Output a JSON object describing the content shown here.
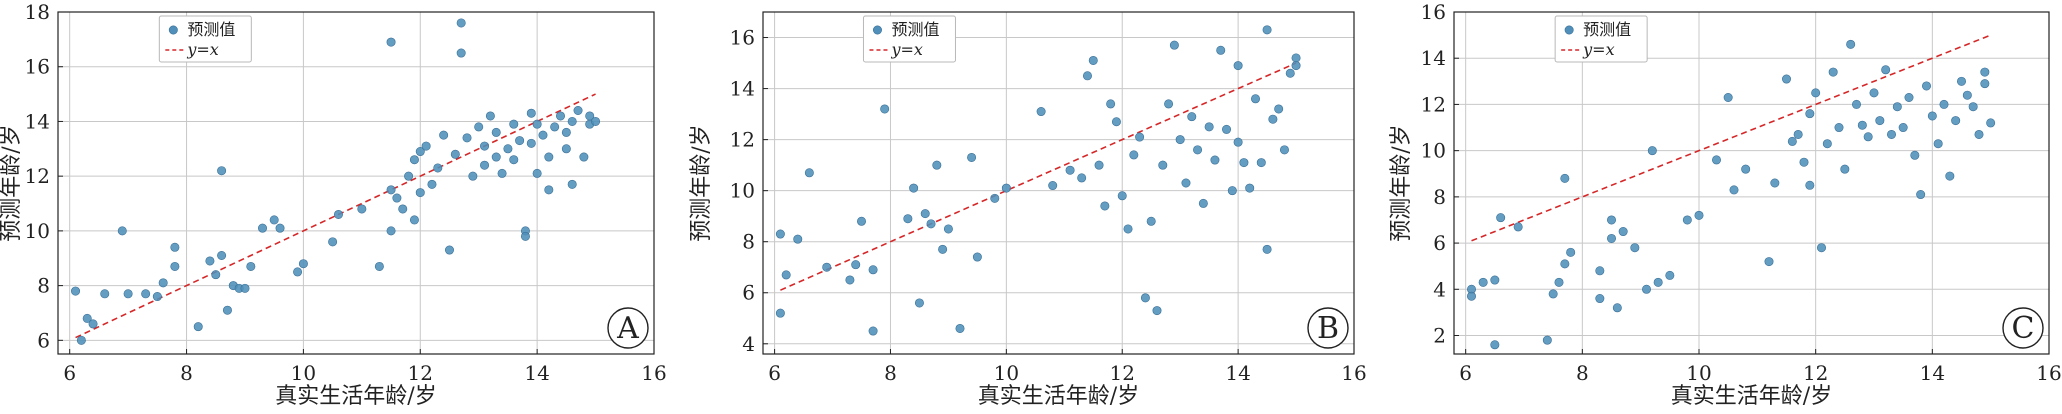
{
  "colors": {
    "point": "#4f8fba",
    "point_edge": "#3a6f96",
    "ref_line": "#d62728",
    "grid": "#c8c8c8",
    "axis": "#222222"
  },
  "chart_data": [
    {
      "type": "scatter",
      "panel_label": "A",
      "xlabel": "真实生活年龄/岁",
      "ylabel": "预测年龄/岁",
      "xlim": [
        5.8,
        16
      ],
      "ylim": [
        5.5,
        18
      ],
      "xticks": [
        "6",
        "8",
        "10",
        "12",
        "14",
        "16"
      ],
      "yticks": [
        "6",
        "8",
        "10",
        "12",
        "14",
        "16",
        "18"
      ],
      "grid": true,
      "legend": {
        "position": "top-center",
        "entries": [
          "预测值",
          "y=x"
        ]
      },
      "reference_line": {
        "label": "y=x",
        "from": [
          6.1,
          6.1
        ],
        "to": [
          15,
          15
        ]
      },
      "series": [
        {
          "name": "预测值",
          "points": [
            [
              6.1,
              7.8
            ],
            [
              6.2,
              6.0
            ],
            [
              6.3,
              6.8
            ],
            [
              6.4,
              6.6
            ],
            [
              6.6,
              7.7
            ],
            [
              6.9,
              10.0
            ],
            [
              7.0,
              7.7
            ],
            [
              7.3,
              7.7
            ],
            [
              7.5,
              7.6
            ],
            [
              7.6,
              8.1
            ],
            [
              7.8,
              8.7
            ],
            [
              7.8,
              9.4
            ],
            [
              8.2,
              6.5
            ],
            [
              8.4,
              8.9
            ],
            [
              8.5,
              8.4
            ],
            [
              8.6,
              12.2
            ],
            [
              8.6,
              9.1
            ],
            [
              8.7,
              7.1
            ],
            [
              8.8,
              8.0
            ],
            [
              8.9,
              7.9
            ],
            [
              9.0,
              7.9
            ],
            [
              9.1,
              8.7
            ],
            [
              9.3,
              10.1
            ],
            [
              9.5,
              10.4
            ],
            [
              9.6,
              10.1
            ],
            [
              9.9,
              8.5
            ],
            [
              10.0,
              8.8
            ],
            [
              10.5,
              9.6
            ],
            [
              10.6,
              10.6
            ],
            [
              11.0,
              10.8
            ],
            [
              11.3,
              8.7
            ],
            [
              11.5,
              10.0
            ],
            [
              11.5,
              11.5
            ],
            [
              11.5,
              16.9
            ],
            [
              11.6,
              11.2
            ],
            [
              11.7,
              10.8
            ],
            [
              11.8,
              12.0
            ],
            [
              11.9,
              12.6
            ],
            [
              11.9,
              10.4
            ],
            [
              12.0,
              11.4
            ],
            [
              12.0,
              12.9
            ],
            [
              12.1,
              13.1
            ],
            [
              12.2,
              11.7
            ],
            [
              12.3,
              12.3
            ],
            [
              12.4,
              13.5
            ],
            [
              12.5,
              9.3
            ],
            [
              12.6,
              12.8
            ],
            [
              12.7,
              17.6
            ],
            [
              12.7,
              16.5
            ],
            [
              12.8,
              13.4
            ],
            [
              12.9,
              12.0
            ],
            [
              13.0,
              13.8
            ],
            [
              13.1,
              13.1
            ],
            [
              13.1,
              12.4
            ],
            [
              13.2,
              14.2
            ],
            [
              13.3,
              12.7
            ],
            [
              13.3,
              13.6
            ],
            [
              13.4,
              12.1
            ],
            [
              13.5,
              13.0
            ],
            [
              13.6,
              13.9
            ],
            [
              13.6,
              12.6
            ],
            [
              13.7,
              13.3
            ],
            [
              13.8,
              10.0
            ],
            [
              13.8,
              9.8
            ],
            [
              13.9,
              13.2
            ],
            [
              13.9,
              14.3
            ],
            [
              14.0,
              12.1
            ],
            [
              14.0,
              13.9
            ],
            [
              14.1,
              13.5
            ],
            [
              14.2,
              12.7
            ],
            [
              14.2,
              11.5
            ],
            [
              14.3,
              13.8
            ],
            [
              14.4,
              14.2
            ],
            [
              14.5,
              13.6
            ],
            [
              14.5,
              13.0
            ],
            [
              14.6,
              14.0
            ],
            [
              14.6,
              11.7
            ],
            [
              14.7,
              14.4
            ],
            [
              14.8,
              12.7
            ],
            [
              14.9,
              13.9
            ],
            [
              14.9,
              14.2
            ],
            [
              15.0,
              14.0
            ]
          ]
        }
      ]
    },
    {
      "type": "scatter",
      "panel_label": "B",
      "xlabel": "真实生活年龄/岁",
      "ylabel": "预测年龄/岁",
      "xlim": [
        5.8,
        16
      ],
      "ylim": [
        3.6,
        17
      ],
      "xticks": [
        "6",
        "8",
        "10",
        "12",
        "14",
        "16"
      ],
      "yticks": [
        "4",
        "6",
        "8",
        "10",
        "12",
        "14",
        "16"
      ],
      "grid": true,
      "legend": {
        "position": "top-center",
        "entries": [
          "预测值",
          "y=x"
        ]
      },
      "reference_line": {
        "label": "y=x",
        "from": [
          6.1,
          6.1
        ],
        "to": [
          15,
          15
        ]
      },
      "series": [
        {
          "name": "预测值",
          "points": [
            [
              6.1,
              5.2
            ],
            [
              6.1,
              8.3
            ],
            [
              6.2,
              6.7
            ],
            [
              6.4,
              8.1
            ],
            [
              6.6,
              10.7
            ],
            [
              6.9,
              7.0
            ],
            [
              7.3,
              6.5
            ],
            [
              7.4,
              7.1
            ],
            [
              7.5,
              8.8
            ],
            [
              7.7,
              4.5
            ],
            [
              7.7,
              6.9
            ],
            [
              7.9,
              13.2
            ],
            [
              8.3,
              8.9
            ],
            [
              8.4,
              10.1
            ],
            [
              8.5,
              5.6
            ],
            [
              8.6,
              9.1
            ],
            [
              8.7,
              8.7
            ],
            [
              8.8,
              11.0
            ],
            [
              8.9,
              7.7
            ],
            [
              9.0,
              8.5
            ],
            [
              9.2,
              4.6
            ],
            [
              9.4,
              11.3
            ],
            [
              9.5,
              7.4
            ],
            [
              9.8,
              9.7
            ],
            [
              10.0,
              10.1
            ],
            [
              10.6,
              13.1
            ],
            [
              10.8,
              10.2
            ],
            [
              11.1,
              10.8
            ],
            [
              11.3,
              10.5
            ],
            [
              11.4,
              14.5
            ],
            [
              11.5,
              15.1
            ],
            [
              11.6,
              11.0
            ],
            [
              11.7,
              9.4
            ],
            [
              11.8,
              13.4
            ],
            [
              11.9,
              12.7
            ],
            [
              12.0,
              9.8
            ],
            [
              12.1,
              8.5
            ],
            [
              12.2,
              11.4
            ],
            [
              12.3,
              12.1
            ],
            [
              12.4,
              5.8
            ],
            [
              12.5,
              8.8
            ],
            [
              12.6,
              5.3
            ],
            [
              12.7,
              11.0
            ],
            [
              12.8,
              13.4
            ],
            [
              12.9,
              15.7
            ],
            [
              13.0,
              12.0
            ],
            [
              13.1,
              10.3
            ],
            [
              13.2,
              12.9
            ],
            [
              13.3,
              11.6
            ],
            [
              13.4,
              9.5
            ],
            [
              13.5,
              12.5
            ],
            [
              13.6,
              11.2
            ],
            [
              13.7,
              15.5
            ],
            [
              13.8,
              12.4
            ],
            [
              13.9,
              10.0
            ],
            [
              14.0,
              11.9
            ],
            [
              14.0,
              14.9
            ],
            [
              14.1,
              11.1
            ],
            [
              14.2,
              10.1
            ],
            [
              14.3,
              13.6
            ],
            [
              14.4,
              11.1
            ],
            [
              14.5,
              16.3
            ],
            [
              14.5,
              7.7
            ],
            [
              14.6,
              12.8
            ],
            [
              14.7,
              13.2
            ],
            [
              14.8,
              11.6
            ],
            [
              14.9,
              14.6
            ],
            [
              15.0,
              15.2
            ],
            [
              15.0,
              14.9
            ]
          ]
        }
      ]
    },
    {
      "type": "scatter",
      "panel_label": "C",
      "xlabel": "真实生活年龄/岁",
      "ylabel": "预测年龄/岁",
      "xlim": [
        5.8,
        16
      ],
      "ylim": [
        1.2,
        16
      ],
      "xticks": [
        "6",
        "8",
        "10",
        "12",
        "14",
        "16"
      ],
      "yticks": [
        "2",
        "4",
        "6",
        "8",
        "10",
        "12",
        "14",
        "16"
      ],
      "grid": true,
      "legend": {
        "position": "top-center",
        "entries": [
          "预测值",
          "y=x"
        ]
      },
      "reference_line": {
        "label": "y=x",
        "from": [
          6.1,
          6.1
        ],
        "to": [
          15,
          15
        ]
      },
      "series": [
        {
          "name": "预测值",
          "points": [
            [
              6.1,
              4.0
            ],
            [
              6.1,
              3.7
            ],
            [
              6.3,
              4.3
            ],
            [
              6.5,
              4.4
            ],
            [
              6.5,
              1.6
            ],
            [
              6.6,
              7.1
            ],
            [
              6.9,
              6.7
            ],
            [
              7.4,
              1.8
            ],
            [
              7.5,
              3.8
            ],
            [
              7.6,
              4.3
            ],
            [
              7.7,
              5.1
            ],
            [
              7.7,
              8.8
            ],
            [
              7.8,
              5.6
            ],
            [
              8.3,
              3.6
            ],
            [
              8.3,
              4.8
            ],
            [
              8.5,
              6.2
            ],
            [
              8.5,
              7.0
            ],
            [
              8.6,
              3.2
            ],
            [
              8.7,
              6.5
            ],
            [
              8.9,
              5.8
            ],
            [
              9.1,
              4.0
            ],
            [
              9.2,
              10.0
            ],
            [
              9.3,
              4.3
            ],
            [
              9.5,
              4.6
            ],
            [
              9.8,
              7.0
            ],
            [
              10.0,
              7.2
            ],
            [
              10.3,
              9.6
            ],
            [
              10.5,
              12.3
            ],
            [
              10.6,
              8.3
            ],
            [
              10.8,
              9.2
            ],
            [
              11.2,
              5.2
            ],
            [
              11.3,
              8.6
            ],
            [
              11.5,
              13.1
            ],
            [
              11.6,
              10.4
            ],
            [
              11.7,
              10.7
            ],
            [
              11.8,
              9.5
            ],
            [
              11.9,
              8.5
            ],
            [
              11.9,
              11.6
            ],
            [
              12.0,
              12.5
            ],
            [
              12.1,
              5.8
            ],
            [
              12.2,
              10.3
            ],
            [
              12.3,
              13.4
            ],
            [
              12.4,
              11.0
            ],
            [
              12.5,
              9.2
            ],
            [
              12.6,
              14.6
            ],
            [
              12.7,
              12.0
            ],
            [
              12.8,
              11.1
            ],
            [
              12.9,
              10.6
            ],
            [
              13.0,
              12.5
            ],
            [
              13.1,
              11.3
            ],
            [
              13.2,
              13.5
            ],
            [
              13.3,
              10.7
            ],
            [
              13.4,
              11.9
            ],
            [
              13.5,
              11.0
            ],
            [
              13.6,
              12.3
            ],
            [
              13.7,
              9.8
            ],
            [
              13.8,
              8.1
            ],
            [
              13.9,
              12.8
            ],
            [
              14.0,
              11.5
            ],
            [
              14.1,
              10.3
            ],
            [
              14.2,
              12.0
            ],
            [
              14.3,
              8.9
            ],
            [
              14.4,
              11.3
            ],
            [
              14.5,
              13.0
            ],
            [
              14.6,
              12.4
            ],
            [
              14.7,
              11.9
            ],
            [
              14.8,
              10.7
            ],
            [
              14.9,
              12.9
            ],
            [
              14.9,
              13.4
            ],
            [
              15.0,
              11.2
            ]
          ]
        }
      ]
    }
  ]
}
